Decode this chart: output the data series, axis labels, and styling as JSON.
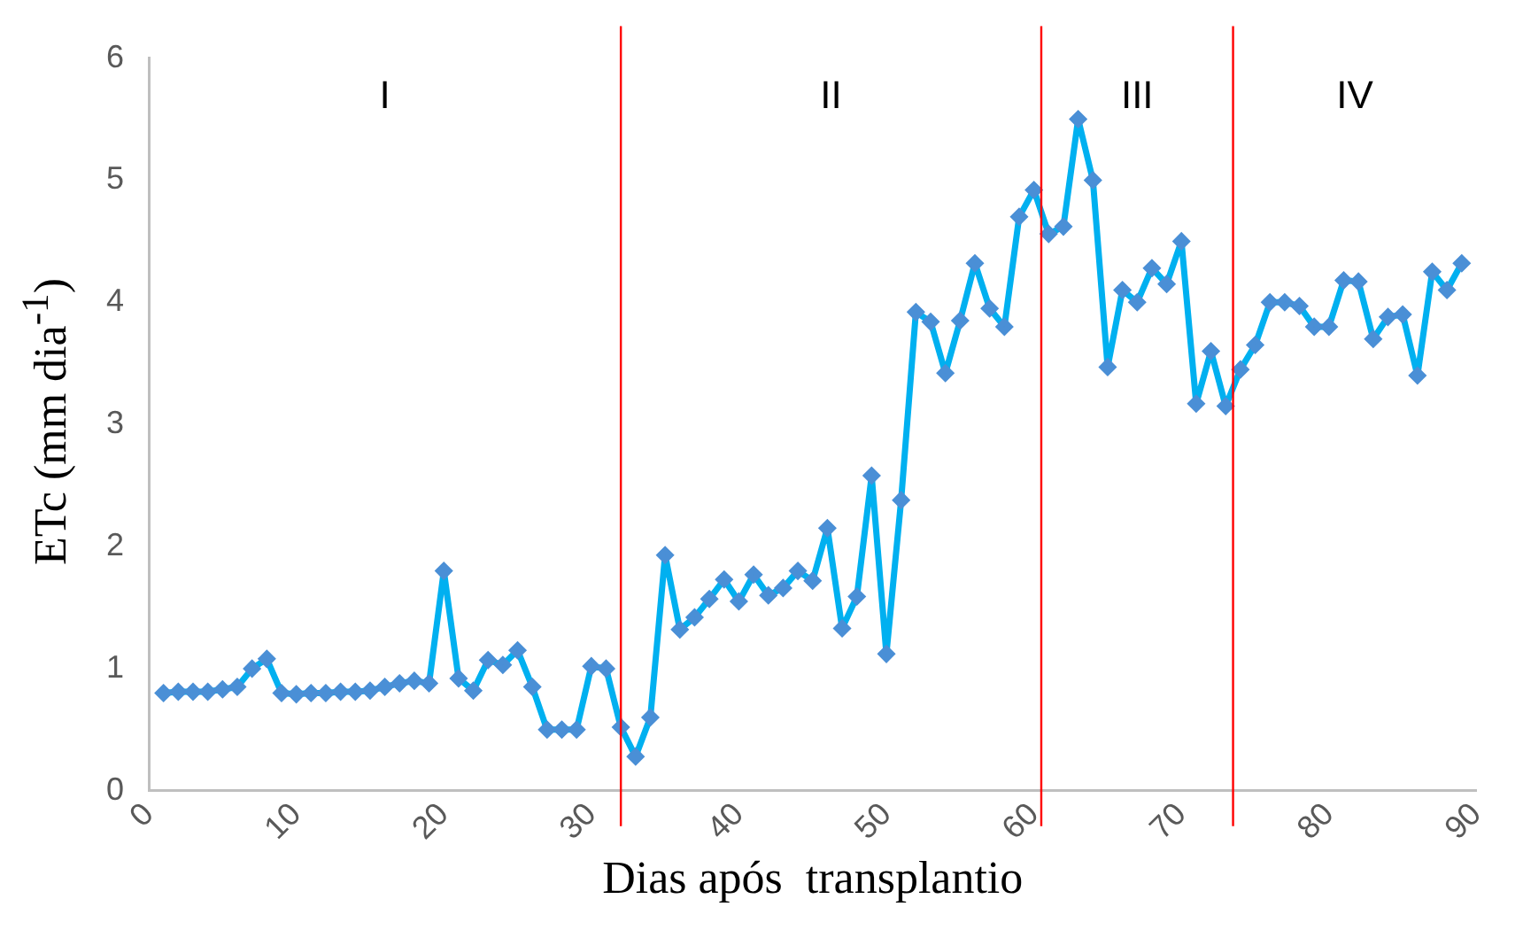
{
  "chart_data": {
    "type": "line",
    "xlabel": "Dias após  transplantio",
    "ylabel": "ETc (mm dia$^{-1}$)",
    "x": [
      1,
      2,
      3,
      4,
      5,
      6,
      7,
      8,
      9,
      10,
      11,
      12,
      13,
      14,
      15,
      16,
      17,
      18,
      19,
      20,
      21,
      22,
      23,
      24,
      25,
      26,
      27,
      28,
      29,
      30,
      31,
      32,
      33,
      34,
      35,
      36,
      37,
      38,
      39,
      40,
      41,
      42,
      43,
      44,
      45,
      46,
      47,
      48,
      49,
      50,
      51,
      52,
      53,
      54,
      55,
      56,
      57,
      58,
      59,
      60,
      61,
      62,
      63,
      64,
      65,
      66,
      67,
      68,
      69,
      70,
      71,
      72,
      73,
      74,
      75,
      76,
      77,
      78,
      79,
      80,
      81,
      82,
      83,
      84,
      85,
      86,
      87,
      88,
      89
    ],
    "series": [
      {
        "color": "#00b0f0",
        "values": [
          0.8,
          0.81,
          0.81,
          0.81,
          0.83,
          0.85,
          1.0,
          1.08,
          0.8,
          0.79,
          0.8,
          0.8,
          0.81,
          0.81,
          0.82,
          0.85,
          0.88,
          0.9,
          0.88,
          1.8,
          0.92,
          0.82,
          1.07,
          1.03,
          1.15,
          0.85,
          0.5,
          0.5,
          0.5,
          1.02,
          1.0,
          0.52,
          0.28,
          0.6,
          1.93,
          1.32,
          1.42,
          1.57,
          1.73,
          1.55,
          1.77,
          1.6,
          1.66,
          1.8,
          1.72,
          2.15,
          1.33,
          1.59,
          2.58,
          1.12,
          2.38,
          3.92,
          3.84,
          3.42,
          3.85,
          4.32,
          3.95,
          3.8,
          4.7,
          4.92,
          4.56,
          4.62,
          5.5,
          5.0,
          3.47,
          4.1,
          4.0,
          4.28,
          4.15,
          4.5,
          3.17,
          3.6,
          3.15,
          3.45,
          3.65,
          4.0,
          4.0,
          3.97,
          3.8,
          3.8,
          4.18,
          4.17,
          3.7,
          3.88,
          3.9,
          3.4,
          4.25,
          4.1,
          4.32
        ]
      }
    ],
    "xlim": [
      0,
      90
    ],
    "xticks": [
      0,
      10,
      20,
      30,
      40,
      50,
      60,
      70,
      80,
      90
    ],
    "ylim": [
      0,
      6
    ],
    "yticks": [
      0,
      1,
      2,
      3,
      4,
      5,
      6
    ],
    "ref_lines": [
      {
        "axis": "x",
        "value": 32,
        "color": "#ff0000"
      },
      {
        "axis": "x",
        "value": 60.5,
        "color": "#ff0000"
      },
      {
        "axis": "x",
        "value": 73.5,
        "color": "#ff0000"
      }
    ],
    "annotations": [
      "I",
      "II",
      "III",
      "IV"
    ],
    "grid": false,
    "legend": false,
    "marker": "diamond",
    "line_style": "solid"
  }
}
